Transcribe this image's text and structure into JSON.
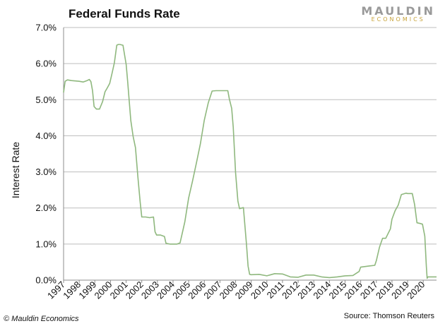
{
  "header": {
    "title": "Federal Funds Rate"
  },
  "logo": {
    "main": "MAULDIN",
    "sub": "ECONOMICS"
  },
  "footer": {
    "copyright": "© Mauldin Economics",
    "source": "Source: Thomson Reuters"
  },
  "colors": {
    "line": "#8fb87e",
    "grid": "#bdbdbd",
    "axis": "#8c8c8c"
  },
  "chart_data": {
    "type": "line",
    "title": "Federal Funds Rate",
    "xlabel": "",
    "ylabel": "Interest Rate",
    "ylim": [
      0,
      0.07
    ],
    "yticks": [
      0,
      0.01,
      0.02,
      0.03,
      0.04,
      0.05,
      0.06,
      0.07
    ],
    "ytick_labels": [
      "0.0%",
      "1.0%",
      "2.0%",
      "3.0%",
      "4.0%",
      "5.0%",
      "6.0%",
      "7.0%"
    ],
    "xlim": [
      1997,
      2020.85
    ],
    "xticks": [
      "1997",
      "1998",
      "1999",
      "2000",
      "2001",
      "2002",
      "2003",
      "2004",
      "2005",
      "2006",
      "2007",
      "2008",
      "2009",
      "2010",
      "2011",
      "2012",
      "2013",
      "2014",
      "2015",
      "2016",
      "2017",
      "2018",
      "2019",
      "2020"
    ],
    "grid": true,
    "series": [
      {
        "x": [
          1997.0,
          1997.1,
          1997.25,
          1997.5,
          1997.75,
          1998.0,
          1998.25,
          1998.5,
          1998.65,
          1998.75,
          1998.85,
          1998.95,
          1999.1,
          1999.3,
          1999.5,
          1999.65,
          1999.8,
          1999.95,
          2000.1,
          2000.25,
          2000.4,
          2000.5,
          2000.6,
          2000.8,
          2001.0,
          2001.1,
          2001.2,
          2001.3,
          2001.45,
          2001.6,
          2001.75,
          2001.9,
          2002.0,
          2002.25,
          2002.5,
          2002.75,
          2002.85,
          2002.95,
          2003.2,
          2003.45,
          2003.55,
          2003.8,
          2004.25,
          2004.45,
          2004.75,
          2005.0,
          2005.25,
          2005.5,
          2005.75,
          2006.0,
          2006.25,
          2006.5,
          2006.75,
          2007.0,
          2007.5,
          2007.6,
          2007.75,
          2007.85,
          2008.0,
          2008.15,
          2008.25,
          2008.5,
          2008.7,
          2008.8,
          2008.9,
          2009.0,
          2009.5,
          2010.0,
          2010.5,
          2011.0,
          2011.5,
          2012.0,
          2012.5,
          2013.0,
          2013.5,
          2014.0,
          2014.5,
          2015.0,
          2015.5,
          2015.9,
          2016.0,
          2016.5,
          2016.9,
          2017.0,
          2017.2,
          2017.4,
          2017.6,
          2017.9,
          2018.0,
          2018.2,
          2018.4,
          2018.6,
          2018.9,
          2019.0,
          2019.3,
          2019.45,
          2019.6,
          2019.8,
          2019.95,
          2020.1,
          2020.2,
          2020.25,
          2020.3,
          2020.5,
          2020.85
        ],
        "y": [
          0.052,
          0.0551,
          0.0555,
          0.0553,
          0.0552,
          0.0551,
          0.0549,
          0.0553,
          0.0556,
          0.055,
          0.0525,
          0.0481,
          0.0474,
          0.0474,
          0.0495,
          0.0522,
          0.0533,
          0.0545,
          0.0573,
          0.0602,
          0.0651,
          0.0653,
          0.0653,
          0.0651,
          0.0598,
          0.0549,
          0.0495,
          0.0442,
          0.0398,
          0.0367,
          0.0286,
          0.0215,
          0.0175,
          0.0175,
          0.0173,
          0.0175,
          0.0134,
          0.0125,
          0.0125,
          0.0121,
          0.0102,
          0.01,
          0.01,
          0.0103,
          0.0161,
          0.0228,
          0.0275,
          0.0326,
          0.0378,
          0.0443,
          0.0491,
          0.0524,
          0.0525,
          0.0525,
          0.0525,
          0.0502,
          0.0476,
          0.0424,
          0.0298,
          0.0219,
          0.0198,
          0.0201,
          0.0098,
          0.0039,
          0.0016,
          0.0015,
          0.0016,
          0.0012,
          0.0018,
          0.0017,
          0.0009,
          0.0008,
          0.0014,
          0.0014,
          0.0009,
          0.0007,
          0.0009,
          0.0012,
          0.0013,
          0.0024,
          0.0036,
          0.0039,
          0.0041,
          0.0054,
          0.0091,
          0.0116,
          0.0116,
          0.0142,
          0.0169,
          0.0192,
          0.0208,
          0.0237,
          0.0241,
          0.024,
          0.024,
          0.0209,
          0.0159,
          0.0157,
          0.0155,
          0.0122,
          0.0038,
          0.0005,
          0.0009,
          0.0009,
          0.0009
        ]
      }
    ]
  }
}
